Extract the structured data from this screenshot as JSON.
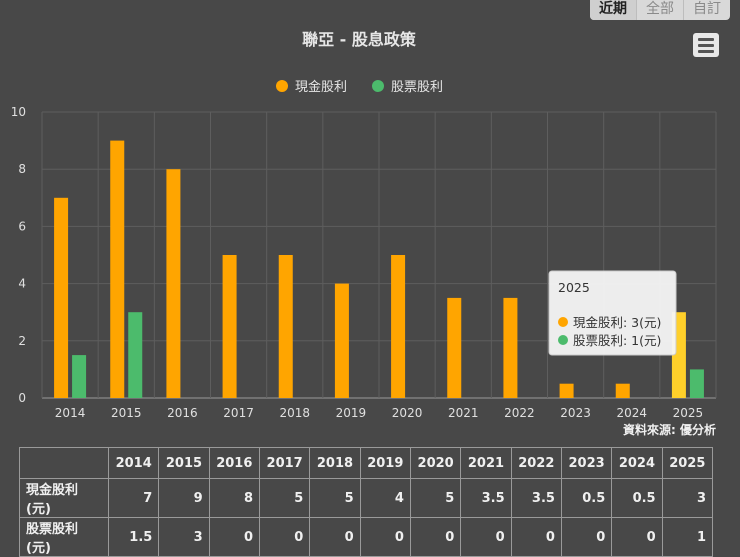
{
  "range_tabs": [
    {
      "label": "近期",
      "active": true
    },
    {
      "label": "全部",
      "active": false
    },
    {
      "label": "自訂",
      "active": false
    }
  ],
  "chart_data": {
    "type": "bar",
    "title": "聯亞 - 股息政策",
    "categories": [
      "2014",
      "2015",
      "2016",
      "2017",
      "2018",
      "2019",
      "2020",
      "2021",
      "2022",
      "2023",
      "2024",
      "2025"
    ],
    "series": [
      {
        "name": "現金股利",
        "color": "#ffa500",
        "values": [
          7,
          9,
          8,
          5,
          5,
          4,
          5,
          3.5,
          3.5,
          0.5,
          0.5,
          3
        ]
      },
      {
        "name": "股票股利",
        "color": "#4cbb6c",
        "values": [
          1.5,
          3,
          0,
          0,
          0,
          0,
          0,
          0,
          0,
          0,
          0,
          1
        ]
      }
    ],
    "ylim": [
      0,
      10
    ],
    "yticks": [
      0,
      2,
      4,
      6,
      8,
      10
    ],
    "grid": true,
    "legend": "top-center",
    "source": "資料來源: 優分析",
    "highlight_color": "#ffd02a",
    "tooltip": {
      "category": "2025",
      "unit": "(元)"
    }
  },
  "table": {
    "rows": [
      {
        "label": "現金股利(元)",
        "values": [
          "7",
          "9",
          "8",
          "5",
          "5",
          "4",
          "5",
          "3.5",
          "3.5",
          "0.5",
          "0.5",
          "3"
        ]
      },
      {
        "label": "股票股利(元)",
        "values": [
          "1.5",
          "3",
          "0",
          "0",
          "0",
          "0",
          "0",
          "0",
          "0",
          "0",
          "0",
          "1"
        ]
      }
    ]
  }
}
